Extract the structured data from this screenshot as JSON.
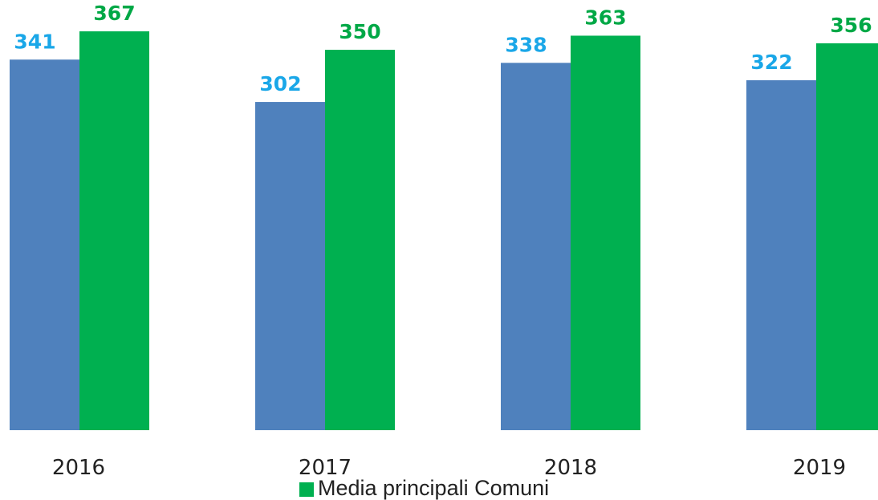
{
  "chart_data": {
    "type": "bar",
    "title": "",
    "xlabel": "",
    "ylabel": "",
    "categories": [
      "2016",
      "2017",
      "2018",
      "2019"
    ],
    "series": [
      {
        "values": [
          341,
          302,
          338,
          322
        ],
        "color": "#4F81BD",
        "label_color": "#1AA7E8"
      },
      {
        "name": "Media principali Comuni",
        "values": [
          367,
          350,
          363,
          356
        ],
        "color": "#00B050",
        "label_color": "#00A846"
      }
    ],
    "ylim": [
      0,
      370
    ],
    "grid": false,
    "axis_visible": false,
    "data_labels": true,
    "legend_position": "bottom"
  }
}
